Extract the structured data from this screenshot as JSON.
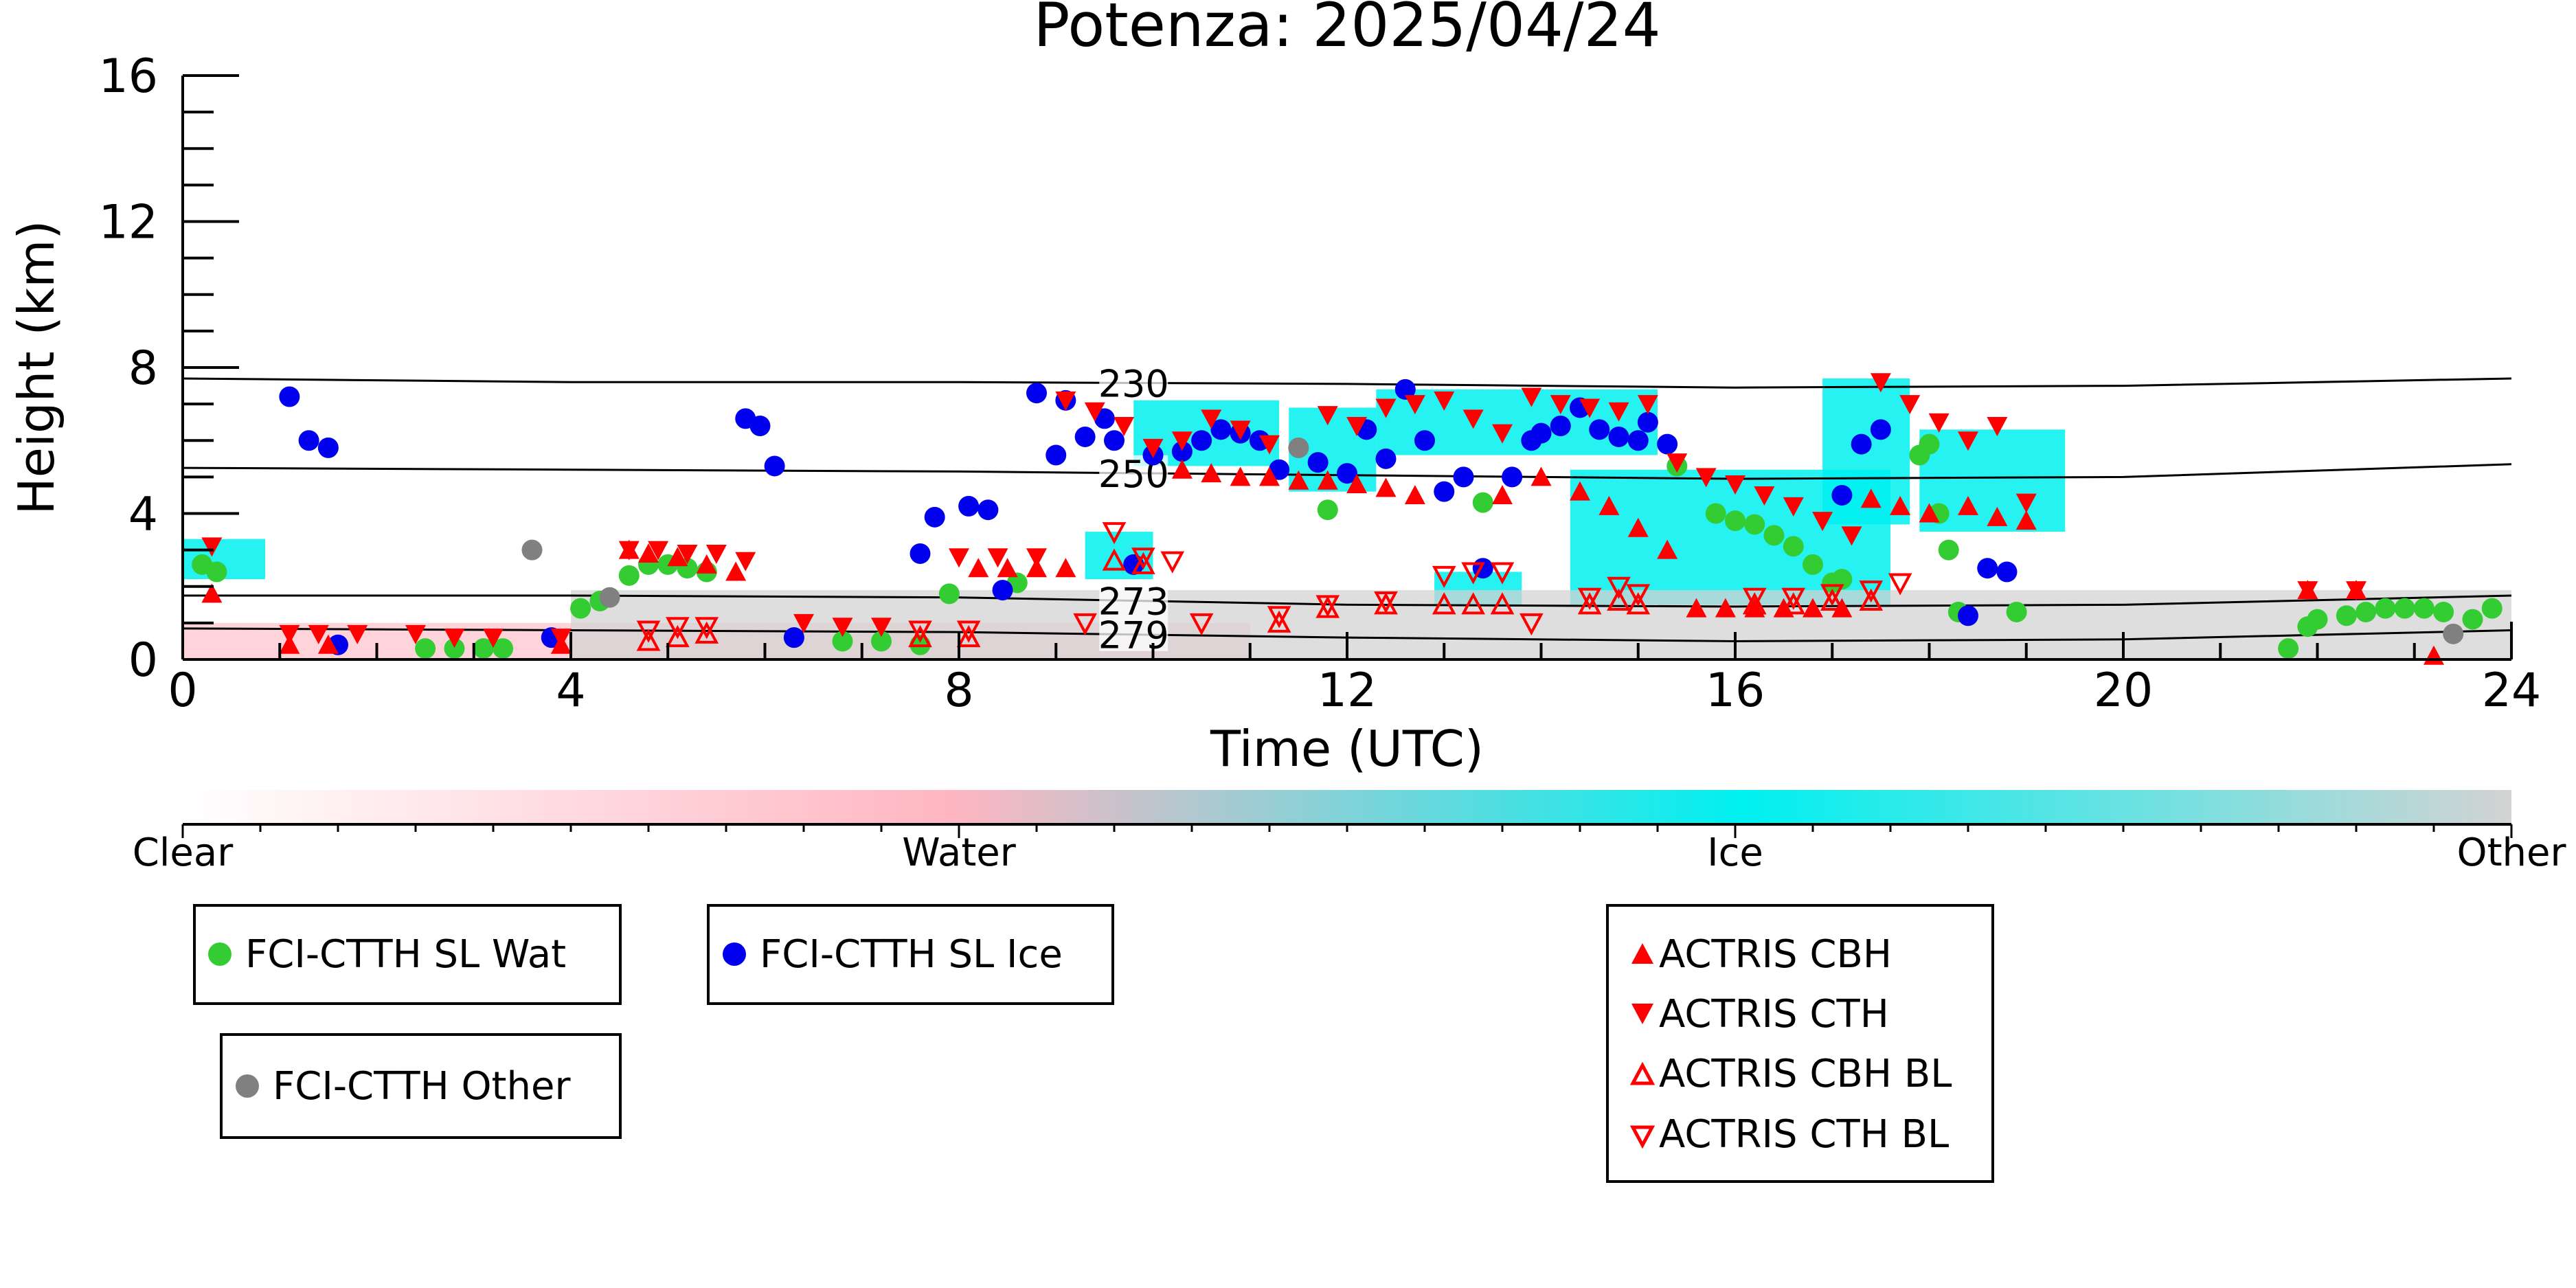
{
  "chart_data": {
    "type": "scatter",
    "title": "Potenza: 2025/04/24",
    "xlabel": "Time (UTC)",
    "ylabel": "Height (km)",
    "xlim": [
      0,
      24
    ],
    "ylim": [
      0,
      16
    ],
    "xticks": [
      "0",
      "4",
      "8",
      "12",
      "16",
      "20",
      "24"
    ],
    "yticks": [
      "0",
      "4",
      "8",
      "12",
      "16"
    ],
    "grid": false,
    "colors": {
      "water_point": "#33cc33",
      "ice_point": "#0000ee",
      "other_point": "#808080",
      "actris": "#ff0000",
      "ice_class": "#00f0f0",
      "water_class": "#ffb6c1",
      "other_class": "#d3d3d3"
    },
    "isotherms": [
      {
        "label": "230",
        "x": [
          0,
          4,
          8,
          12,
          16,
          20,
          24
        ],
        "y": [
          7.7,
          7.6,
          7.6,
          7.55,
          7.45,
          7.5,
          7.7
        ]
      },
      {
        "label": "250",
        "x": [
          0,
          4,
          8,
          12,
          16,
          20,
          24
        ],
        "y": [
          5.25,
          5.2,
          5.15,
          5.05,
          4.95,
          5.0,
          5.35
        ]
      },
      {
        "label": "273",
        "x": [
          0,
          4,
          8,
          12,
          16,
          20,
          24
        ],
        "y": [
          1.75,
          1.75,
          1.7,
          1.5,
          1.45,
          1.5,
          1.75
        ]
      },
      {
        "label": "279",
        "x": [
          0,
          4,
          8,
          12,
          16,
          20,
          24
        ],
        "y": [
          0.85,
          0.8,
          0.75,
          0.6,
          0.5,
          0.55,
          0.8
        ]
      }
    ],
    "colorbar": {
      "labels": [
        "Clear",
        "Water",
        "Ice",
        "Other"
      ]
    },
    "classification_regions": [
      {
        "class": "ice",
        "x0": 0.0,
        "x1": 0.85,
        "y0": 2.2,
        "y1": 3.3
      },
      {
        "class": "ice",
        "x0": 9.3,
        "x1": 10.0,
        "y0": 2.2,
        "y1": 3.5
      },
      {
        "class": "ice",
        "x0": 9.8,
        "x1": 11.3,
        "y0": 5.3,
        "y1": 7.1
      },
      {
        "class": "ice",
        "x0": 11.4,
        "x1": 12.3,
        "y0": 4.6,
        "y1": 6.9
      },
      {
        "class": "ice",
        "x0": 12.3,
        "x1": 15.2,
        "y0": 5.6,
        "y1": 7.4
      },
      {
        "class": "ice",
        "x0": 14.3,
        "x1": 17.6,
        "y0": 1.5,
        "y1": 5.2
      },
      {
        "class": "ice",
        "x0": 16.9,
        "x1": 17.8,
        "y0": 3.7,
        "y1": 7.7
      },
      {
        "class": "ice",
        "x0": 17.9,
        "x1": 19.4,
        "y0": 3.5,
        "y1": 6.3
      },
      {
        "class": "ice",
        "x0": 12.9,
        "x1": 13.8,
        "y0": 1.5,
        "y1": 2.4
      },
      {
        "class": "water",
        "x0": 0.0,
        "x1": 11.0,
        "y0": 0.0,
        "y1": 1.0
      },
      {
        "class": "other",
        "x0": 4.0,
        "x1": 24.0,
        "y0": 0.0,
        "y1": 1.9
      }
    ],
    "series": [
      {
        "name": "FCI-CTTH SL Wat",
        "marker": "circle",
        "x": [
          0.2,
          0.35,
          2.5,
          2.8,
          3.1,
          3.3,
          4.1,
          4.3,
          4.6,
          4.8,
          5.0,
          5.2,
          5.4,
          6.3,
          6.8,
          7.2,
          7.6,
          7.9,
          8.6,
          11.8,
          13.4,
          15.4,
          15.8,
          16.0,
          16.2,
          16.4,
          16.6,
          16.8,
          17.0,
          17.1,
          17.9,
          18.0,
          18.1,
          18.2,
          18.3,
          18.9,
          21.7,
          21.9,
          22.0,
          22.3,
          22.5,
          22.7,
          22.9,
          23.1,
          23.3,
          23.6,
          23.8
        ],
        "y": [
          2.6,
          2.4,
          0.3,
          0.3,
          0.3,
          0.3,
          1.4,
          1.6,
          2.3,
          2.6,
          2.6,
          2.5,
          2.4,
          0.6,
          0.5,
          0.5,
          0.4,
          1.8,
          2.1,
          4.1,
          4.3,
          5.3,
          4.0,
          3.8,
          3.7,
          3.4,
          3.1,
          2.6,
          2.1,
          2.2,
          5.6,
          5.9,
          4.0,
          3.0,
          1.3,
          1.3,
          0.3,
          0.9,
          1.1,
          1.2,
          1.3,
          1.4,
          1.4,
          1.4,
          1.3,
          1.1,
          1.4
        ]
      },
      {
        "name": "FCI-CTTH SL Ice",
        "marker": "circle",
        "x": [
          1.1,
          1.3,
          1.5,
          1.6,
          3.8,
          5.8,
          5.95,
          6.1,
          6.3,
          7.6,
          7.75,
          8.1,
          8.3,
          8.45,
          8.8,
          9.0,
          9.1,
          9.3,
          9.5,
          9.6,
          9.8,
          10.0,
          10.3,
          10.5,
          10.7,
          10.9,
          11.1,
          11.3,
          11.7,
          12.0,
          12.2,
          12.4,
          12.6,
          12.8,
          13.0,
          13.2,
          13.4,
          13.7,
          13.9,
          14.0,
          14.2,
          14.4,
          14.6,
          14.8,
          15.0,
          15.1,
          15.3,
          17.1,
          17.3,
          17.5,
          18.4,
          18.6,
          18.8
        ],
        "y": [
          7.2,
          6.0,
          5.8,
          0.4,
          0.6,
          6.6,
          6.4,
          5.3,
          0.6,
          2.9,
          3.9,
          4.2,
          4.1,
          1.9,
          7.3,
          5.6,
          7.1,
          6.1,
          6.6,
          6.0,
          2.6,
          5.6,
          5.7,
          6.0,
          6.3,
          6.2,
          6.0,
          5.2,
          5.4,
          5.1,
          6.3,
          5.5,
          7.4,
          6.0,
          4.6,
          5.0,
          2.5,
          5.0,
          6.0,
          6.2,
          6.4,
          6.9,
          6.3,
          6.1,
          6.0,
          6.5,
          5.9,
          4.5,
          5.9,
          6.3,
          1.2,
          2.5,
          2.4
        ]
      },
      {
        "name": "FCI-CTTH Other",
        "marker": "circle",
        "x": [
          3.6,
          4.4,
          11.5,
          23.4
        ],
        "y": [
          3.0,
          1.7,
          5.8,
          0.7
        ]
      },
      {
        "name": "ACTRIS CBH",
        "marker": "triangle-up",
        "x": [
          0.3,
          1.1,
          1.5,
          3.9,
          4.6,
          4.8,
          5.1,
          5.4,
          5.7,
          8.2,
          8.5,
          8.8,
          9.1,
          10.3,
          10.6,
          10.9,
          11.2,
          11.5,
          11.8,
          12.1,
          12.4,
          12.7,
          13.6,
          14.0,
          14.4,
          14.7,
          15.0,
          15.3,
          15.6,
          15.9,
          16.2,
          16.5,
          16.8,
          17.1,
          17.4,
          17.7,
          18.0,
          18.4,
          18.7,
          19.0,
          21.9,
          22.4,
          23.2
        ],
        "y": [
          1.8,
          0.4,
          0.4,
          0.4,
          3.0,
          2.9,
          2.8,
          2.6,
          2.4,
          2.5,
          2.5,
          2.5,
          2.5,
          5.2,
          5.1,
          5.0,
          5.0,
          4.9,
          4.9,
          4.8,
          4.7,
          4.5,
          4.5,
          5.0,
          4.6,
          4.2,
          3.6,
          3.0,
          1.4,
          1.4,
          1.4,
          1.4,
          1.4,
          1.4,
          4.4,
          4.2,
          4.0,
          4.2,
          3.9,
          3.8,
          1.9,
          1.9,
          0.1
        ]
      },
      {
        "name": "ACTRIS CTH",
        "marker": "triangle-down",
        "x": [
          0.3,
          1.1,
          1.4,
          1.8,
          2.4,
          2.8,
          3.2,
          3.9,
          4.6,
          4.9,
          5.2,
          5.5,
          5.8,
          6.4,
          6.8,
          7.2,
          8.0,
          8.4,
          8.8,
          9.1,
          9.4,
          9.7,
          10.0,
          10.3,
          10.6,
          10.9,
          11.2,
          11.8,
          12.1,
          12.4,
          12.7,
          13.0,
          13.3,
          13.6,
          13.9,
          14.2,
          14.5,
          14.8,
          15.1,
          15.4,
          15.7,
          16.0,
          16.3,
          16.6,
          16.9,
          17.2,
          17.5,
          17.8,
          18.1,
          18.4,
          18.7,
          19.0,
          21.9,
          22.4
        ],
        "y": [
          3.1,
          0.7,
          0.7,
          0.7,
          0.7,
          0.6,
          0.6,
          0.6,
          3.0,
          3.0,
          2.9,
          2.9,
          2.7,
          1.0,
          0.9,
          0.9,
          2.8,
          2.8,
          2.8,
          7.1,
          6.8,
          6.4,
          5.8,
          6.0,
          6.6,
          6.3,
          5.9,
          6.7,
          6.4,
          6.9,
          7.0,
          7.1,
          6.6,
          6.2,
          7.2,
          7.0,
          6.9,
          6.8,
          7.0,
          5.4,
          5.0,
          4.8,
          4.5,
          4.2,
          3.8,
          3.4,
          7.6,
          7.0,
          6.5,
          6.0,
          6.4,
          4.3,
          1.9,
          1.9
        ]
      },
      {
        "name": "ACTRIS CBH BL",
        "marker": "triangle-up-open",
        "x": [
          4.8,
          5.1,
          5.4,
          7.6,
          8.1,
          9.6,
          9.9,
          11.3,
          11.8,
          12.4,
          13.0,
          13.3,
          13.6,
          14.5,
          14.8,
          15.0,
          16.2,
          16.6,
          17.0,
          17.4
        ],
        "y": [
          0.5,
          0.6,
          0.7,
          0.6,
          0.6,
          2.7,
          2.6,
          1.0,
          1.4,
          1.5,
          1.5,
          1.5,
          1.5,
          1.5,
          1.6,
          1.5,
          1.5,
          1.5,
          1.6,
          1.6
        ]
      },
      {
        "name": "ACTRIS CTH BL",
        "marker": "triangle-down-open",
        "x": [
          4.8,
          5.1,
          5.4,
          7.6,
          8.1,
          9.3,
          9.6,
          9.9,
          10.2,
          10.5,
          11.3,
          11.8,
          12.4,
          13.0,
          13.3,
          13.6,
          13.9,
          14.5,
          14.8,
          15.0,
          16.2,
          16.6,
          17.0,
          17.4,
          17.7
        ],
        "y": [
          0.8,
          0.9,
          0.9,
          0.8,
          0.8,
          1.0,
          3.5,
          2.8,
          2.7,
          1.0,
          1.2,
          1.5,
          1.6,
          2.3,
          2.4,
          2.4,
          1.0,
          1.7,
          2.0,
          1.8,
          1.7,
          1.7,
          1.8,
          1.9,
          2.1
        ]
      }
    ],
    "legends": [
      {
        "entries": [
          "FCI-CTTH SL Wat"
        ]
      },
      {
        "entries": [
          "FCI-CTTH SL Ice"
        ]
      },
      {
        "entries": [
          "FCI-CTTH Other"
        ]
      },
      {
        "entries": [
          "ACTRIS CBH",
          "ACTRIS CTH",
          "ACTRIS CBH BL",
          "ACTRIS CTH BL"
        ]
      }
    ]
  }
}
